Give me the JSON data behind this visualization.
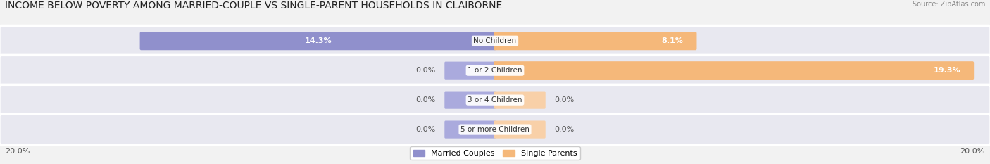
{
  "title": "INCOME BELOW POVERTY AMONG MARRIED-COUPLE VS SINGLE-PARENT HOUSEHOLDS IN CLAIBORNE",
  "source": "Source: ZipAtlas.com",
  "categories": [
    "No Children",
    "1 or 2 Children",
    "3 or 4 Children",
    "5 or more Children"
  ],
  "married_values": [
    14.3,
    0.0,
    0.0,
    0.0
  ],
  "single_values": [
    8.1,
    19.3,
    0.0,
    0.0
  ],
  "married_color": "#9090cc",
  "single_color": "#f5b87a",
  "married_color_stub": "#aaaadd",
  "single_color_stub": "#f8d0a8",
  "married_label": "Married Couples",
  "single_label": "Single Parents",
  "max_val": 20.0,
  "row_bg_color": "#e8e8f0",
  "fig_bg_color": "#f2f2f2",
  "title_fontsize": 10,
  "bar_label_fontsize": 8,
  "cat_label_fontsize": 7.5,
  "axis_label_fontsize": 8,
  "stub_size": 2.0,
  "x_left_label": "20.0%",
  "x_right_label": "20.0%"
}
